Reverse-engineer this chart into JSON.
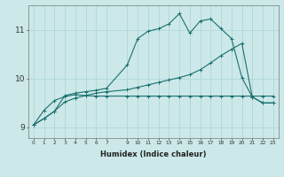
{
  "xlabel": "Humidex (Indice chaleur)",
  "bg_color": "#cce8e8",
  "line_color": "#1a7070",
  "grid_color": "#aad4d4",
  "xlim": [
    -0.5,
    23.5
  ],
  "ylim": [
    8.78,
    11.5
  ],
  "xticks": [
    0,
    1,
    2,
    3,
    4,
    5,
    6,
    7,
    9,
    10,
    11,
    12,
    13,
    14,
    15,
    16,
    17,
    18,
    19,
    20,
    21,
    22,
    23
  ],
  "yticks": [
    9,
    10,
    11
  ],
  "line1_x": [
    0,
    1,
    2,
    3,
    4,
    5,
    6,
    7,
    9,
    10,
    11,
    12,
    13,
    14,
    15,
    16,
    17,
    18,
    19,
    20,
    21,
    22,
    23
  ],
  "line1_y": [
    9.05,
    9.35,
    9.55,
    9.63,
    9.67,
    9.65,
    9.64,
    9.64,
    9.64,
    9.64,
    9.64,
    9.64,
    9.64,
    9.64,
    9.64,
    9.64,
    9.64,
    9.64,
    9.64,
    9.64,
    9.64,
    9.64,
    9.64
  ],
  "line2_x": [
    0,
    1,
    2,
    3,
    4,
    5,
    6,
    7,
    9,
    10,
    11,
    12,
    13,
    14,
    15,
    16,
    17,
    18,
    19,
    20,
    21,
    22,
    23
  ],
  "line2_y": [
    9.05,
    9.18,
    9.33,
    9.52,
    9.6,
    9.65,
    9.7,
    9.73,
    9.77,
    9.82,
    9.87,
    9.92,
    9.97,
    10.02,
    10.08,
    10.18,
    10.32,
    10.47,
    10.6,
    10.72,
    9.62,
    9.5,
    9.5
  ],
  "line3_x": [
    0,
    1,
    2,
    3,
    4,
    5,
    6,
    7,
    9,
    10,
    11,
    12,
    13,
    14,
    15,
    16,
    17,
    18,
    19,
    20,
    21,
    22,
    23
  ],
  "line3_y": [
    9.05,
    9.18,
    9.33,
    9.65,
    9.7,
    9.73,
    9.76,
    9.8,
    10.28,
    10.82,
    10.97,
    11.02,
    11.12,
    11.33,
    10.93,
    11.18,
    11.22,
    11.02,
    10.82,
    10.02,
    9.62,
    9.5,
    9.5
  ]
}
